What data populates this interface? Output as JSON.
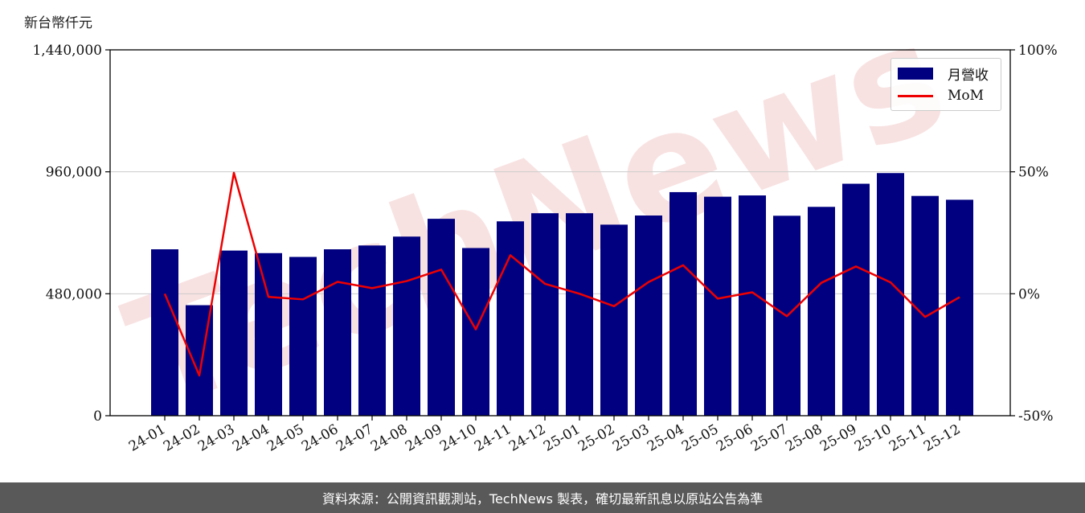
{
  "unit_label": "新台幣仟元",
  "watermark": "TechNews",
  "footer": "資料來源：公開資訊觀測站，TechNews 製表，確切最新訊息以原站公告為準",
  "colors": {
    "bar": "#000080",
    "line": "#ee0000",
    "grid": "#cccccc",
    "watermark": "#f2c8c8",
    "footer_bg": "#595959"
  },
  "legend": {
    "bar": "月營收",
    "line": "MoM"
  },
  "chart_data": {
    "type": "bar",
    "categories": [
      "24-01",
      "24-02",
      "24-03",
      "24-04",
      "24-05",
      "24-06",
      "24-07",
      "24-08",
      "24-09",
      "24-10",
      "24-11",
      "24-12",
      "25-01",
      "25-02",
      "25-03",
      "25-04",
      "25-05",
      "25-06",
      "25-07",
      "25-08",
      "25-09",
      "25-10",
      "25-11",
      "25-12"
    ],
    "series": [
      {
        "name": "月營收",
        "type": "bar",
        "axis": "left",
        "values": [
          655000,
          435000,
          650000,
          640000,
          625000,
          655000,
          670000,
          705000,
          775000,
          660000,
          765000,
          797000,
          797000,
          752000,
          788000,
          880000,
          862000,
          867000,
          787000,
          822000,
          913000,
          955000,
          865000,
          850000
        ]
      },
      {
        "name": "MoM",
        "type": "line",
        "axis": "right",
        "values": [
          0.0,
          -33.5,
          49.6,
          -1.3,
          -2.3,
          4.9,
          2.3,
          5.2,
          9.9,
          -14.6,
          15.8,
          4.1,
          0.0,
          -5.1,
          4.8,
          11.7,
          -2.0,
          0.6,
          -9.2,
          4.5,
          11.2,
          4.7,
          -9.5,
          -1.4
        ]
      }
    ],
    "y_left": {
      "range": [
        0,
        1440000
      ],
      "ticks": [
        "0",
        "480,000",
        "960,000",
        "1,440,000"
      ],
      "tick_values": [
        0,
        480000,
        960000,
        1440000
      ]
    },
    "y_right": {
      "range": [
        -50,
        100
      ],
      "ticks": [
        "-50%",
        "0%",
        "50%",
        "100%"
      ],
      "tick_values": [
        -50,
        0,
        50,
        100
      ]
    },
    "grid": "horizontal",
    "legend_position": "top-right"
  }
}
